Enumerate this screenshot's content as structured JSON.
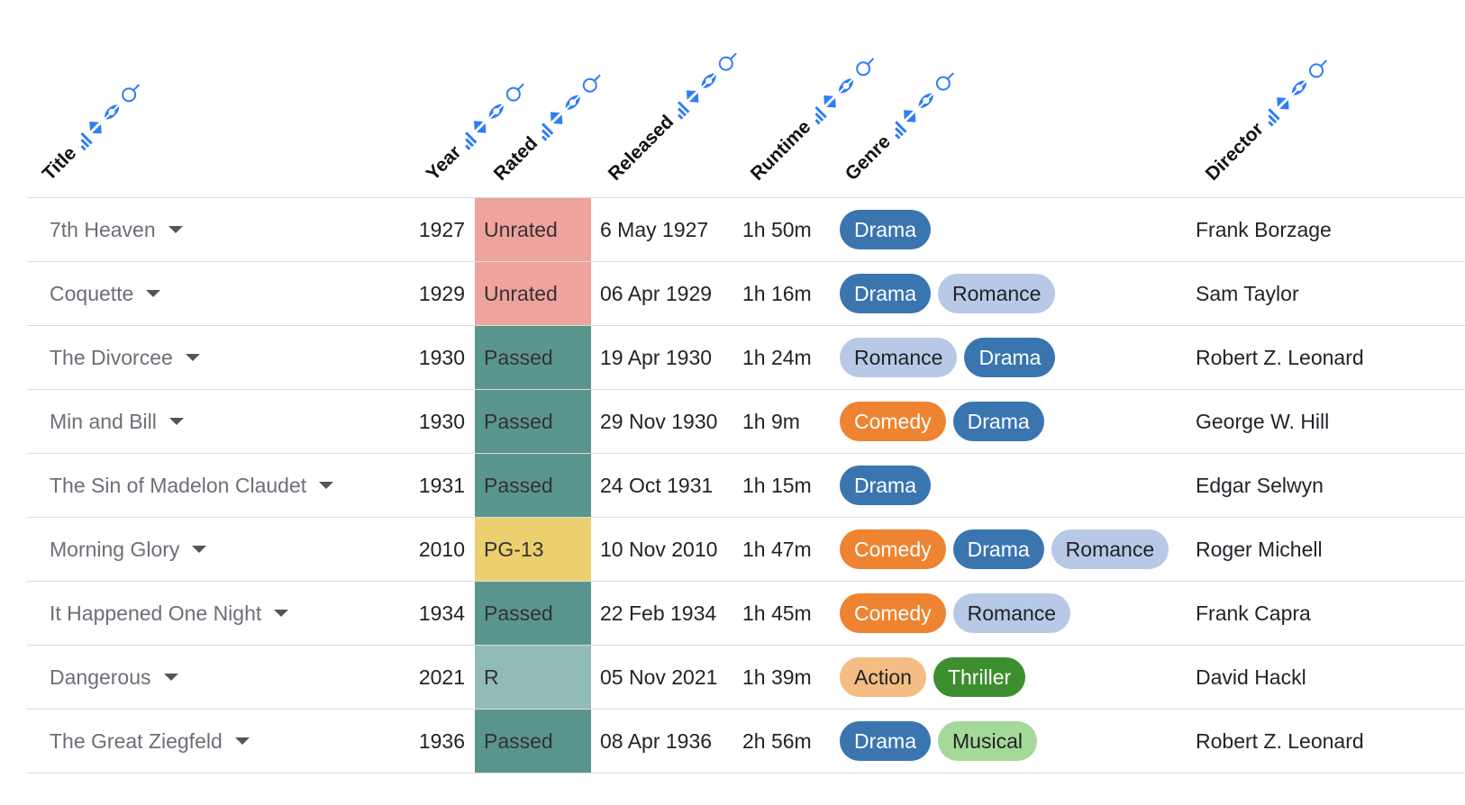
{
  "columns": {
    "title": "Title",
    "year": "Year",
    "rated": "Rated",
    "released": "Released",
    "runtime": "Runtime",
    "genre": "Genre",
    "director": "Director"
  },
  "colors": {
    "header_icon": "#2f7df6",
    "rated": {
      "Unrated": "#eea39c",
      "Passed": "#5a958e",
      "PG-13": "#ecd06f",
      "R": "#91bbb6"
    },
    "genre": {
      "Drama": {
        "bg": "#3a75b0",
        "fg": "#ffffff"
      },
      "Romance": {
        "bg": "#b7c9e6",
        "fg": "#222222"
      },
      "Comedy": {
        "bg": "#ee8431",
        "fg": "#ffffff"
      },
      "Action": {
        "bg": "#f3bd83",
        "fg": "#222222"
      },
      "Thriller": {
        "bg": "#3d8e2f",
        "fg": "#ffffff"
      },
      "Musical": {
        "bg": "#a5d99a",
        "fg": "#222222"
      }
    }
  },
  "header_icons": [
    "bar-chart-icon",
    "sort-icon",
    "hide-icon",
    "search-icon"
  ],
  "rows": [
    {
      "title": "7th Heaven",
      "year": "1927",
      "rated": "Unrated",
      "released": "6 May 1927",
      "runtime": "1h 50m",
      "genres": [
        "Drama"
      ],
      "director": "Frank Borzage"
    },
    {
      "title": "Coquette",
      "year": "1929",
      "rated": "Unrated",
      "released": "06 Apr 1929",
      "runtime": "1h 16m",
      "genres": [
        "Drama",
        "Romance"
      ],
      "director": "Sam Taylor"
    },
    {
      "title": "The Divorcee",
      "year": "1930",
      "rated": "Passed",
      "released": "19 Apr 1930",
      "runtime": "1h 24m",
      "genres": [
        "Romance",
        "Drama"
      ],
      "director": "Robert Z. Leonard"
    },
    {
      "title": "Min and Bill",
      "year": "1930",
      "rated": "Passed",
      "released": "29 Nov 1930",
      "runtime": "1h 9m",
      "genres": [
        "Comedy",
        "Drama"
      ],
      "director": "George W. Hill"
    },
    {
      "title": "The Sin of Madelon Claudet",
      "year": "1931",
      "rated": "Passed",
      "released": "24 Oct 1931",
      "runtime": "1h 15m",
      "genres": [
        "Drama"
      ],
      "director": "Edgar Selwyn"
    },
    {
      "title": "Morning Glory",
      "year": "2010",
      "rated": "PG-13",
      "released": "10 Nov 2010",
      "runtime": "1h 47m",
      "genres": [
        "Comedy",
        "Drama",
        "Romance"
      ],
      "director": "Roger Michell"
    },
    {
      "title": "It Happened One Night",
      "year": "1934",
      "rated": "Passed",
      "released": "22 Feb 1934",
      "runtime": "1h 45m",
      "genres": [
        "Comedy",
        "Romance"
      ],
      "director": "Frank Capra"
    },
    {
      "title": "Dangerous",
      "year": "2021",
      "rated": "R",
      "released": "05 Nov 2021",
      "runtime": "1h 39m",
      "genres": [
        "Action",
        "Thriller"
      ],
      "director": "David Hackl"
    },
    {
      "title": "The Great Ziegfeld",
      "year": "1936",
      "rated": "Passed",
      "released": "08 Apr 1936",
      "runtime": "2h 56m",
      "genres": [
        "Drama",
        "Musical"
      ],
      "director": "Robert Z. Leonard"
    }
  ]
}
